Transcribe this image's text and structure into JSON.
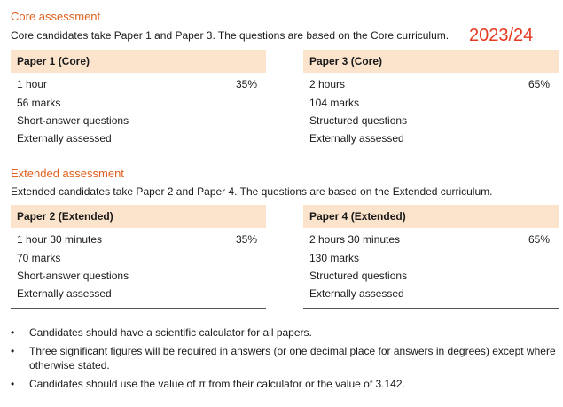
{
  "core": {
    "title": "Core assessment",
    "intro": "Core candidates take Paper 1 and Paper 3. The questions are based on the Core curriculum.",
    "year": "2023/24",
    "papers": [
      {
        "heading": "Paper 1 (Core)",
        "duration": "1 hour",
        "weight": "35%",
        "marks": "56 marks",
        "type": "Short-answer questions",
        "assessed": "Externally assessed"
      },
      {
        "heading": "Paper 3 (Core)",
        "duration": "2 hours",
        "weight": "65%",
        "marks": "104 marks",
        "type": "Structured questions",
        "assessed": "Externally assessed"
      }
    ]
  },
  "extended": {
    "title": "Extended assessment",
    "intro": "Extended candidates take Paper 2 and Paper 4. The questions are based on the Extended curriculum.",
    "papers": [
      {
        "heading": "Paper 2 (Extended)",
        "duration": "1 hour 30 minutes",
        "weight": "35%",
        "marks": "70 marks",
        "type": "Short-answer questions",
        "assessed": "Externally assessed"
      },
      {
        "heading": "Paper 4 (Extended)",
        "duration": "2 hours 30 minutes",
        "weight": "65%",
        "marks": "130 marks",
        "type": "Structured questions",
        "assessed": "Externally assessed"
      }
    ]
  },
  "notes": {
    "bullet_glyph": "•",
    "items": [
      "Candidates should have a scientific calculator for all papers.",
      "Three significant figures will be required in answers (or one decimal place for answers in degrees) except where otherwise stated.",
      "Candidates should use the value of π from their calculator or the value of 3.142."
    ]
  }
}
